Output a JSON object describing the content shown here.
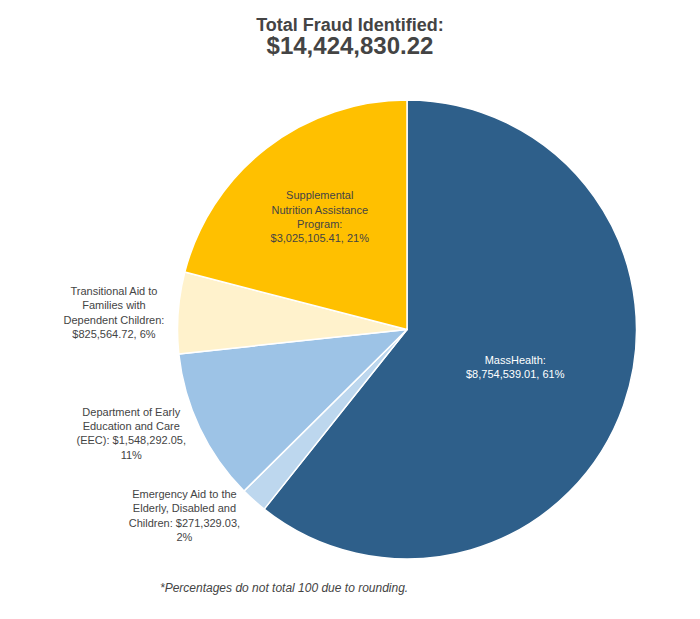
{
  "chart_data": {
    "type": "pie",
    "title": "Total Fraud Identified:",
    "subtitle": "$14,424,830.22",
    "values": [
      8754539.01,
      271329.03,
      1548292.05,
      825564.72,
      3025105.41
    ],
    "value_labels": [
      "MassHealth:\n$8,754,539.01, 61%",
      "Emergency Aid to the\nElderly, Disabled and\nChildren: $271,329.03,\n2%",
      "Department of Early\nEducation and Care\n(EEC): $1,548,292.05,\n11%",
      "Transitional Aid to\nFamilies with\nDependent Children:\n$825,564.72, 6%",
      "Supplemental\nNutrition Assistance\nProgram:\n$3,025,105.41, 21%"
    ],
    "colors": [
      "#2E5F8A",
      "#BDD7EE",
      "#9DC3E6",
      "#FFF2CC",
      "#FFC000"
    ],
    "annotations": [
      "*Percentages do not total 100 due to rounding."
    ]
  }
}
